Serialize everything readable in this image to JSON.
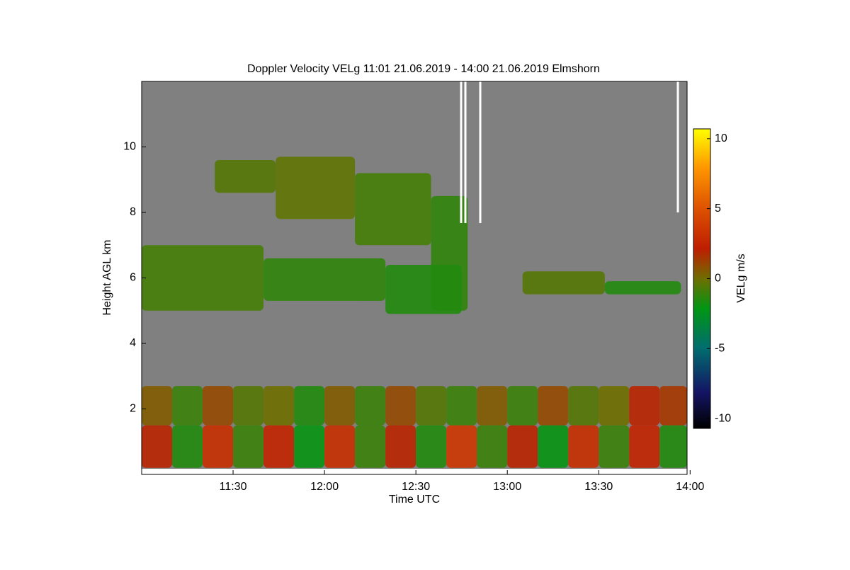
{
  "chart_data": {
    "type": "heatmap",
    "title": "Doppler Velocity VELg   11:01 21.06.2019 - 14:00 21.06.2019 Elmshorn",
    "x_label": "Time UTC",
    "y_label": "Height AGL km",
    "colorbar_label": "VELg m/s",
    "xlim": [
      660,
      839
    ],
    "ylim": [
      0,
      12
    ],
    "xticks": [
      {
        "value": 690,
        "label": "11:30"
      },
      {
        "value": 720,
        "label": "12:00"
      },
      {
        "value": 750,
        "label": "12:30"
      },
      {
        "value": 780,
        "label": "13:00"
      },
      {
        "value": 810,
        "label": "13:30"
      },
      {
        "value": 840,
        "label": "14:00"
      }
    ],
    "yticks": [
      2,
      4,
      6,
      8,
      10
    ],
    "clim": [
      -10.7,
      10.7
    ],
    "cticks": [
      10,
      5,
      0,
      -5,
      -10
    ],
    "cells": {
      "t0": [
        684,
        704,
        730,
        755,
        660,
        700,
        740,
        785,
        812,
        660,
        670,
        680,
        690,
        700,
        710,
        720,
        730,
        740,
        750,
        760,
        770,
        780,
        790,
        800,
        810,
        820,
        830,
        660,
        670,
        680,
        690,
        700,
        710,
        720,
        730,
        740,
        750,
        760,
        770,
        780,
        790,
        800,
        810,
        820,
        830
      ],
      "t1": [
        704,
        730,
        755,
        767,
        700,
        740,
        765,
        812,
        837,
        670,
        680,
        690,
        700,
        710,
        720,
        730,
        740,
        750,
        760,
        770,
        780,
        790,
        800,
        810,
        820,
        830,
        839,
        670,
        680,
        690,
        700,
        710,
        720,
        730,
        740,
        750,
        760,
        770,
        780,
        790,
        800,
        810,
        820,
        830,
        839
      ],
      "h0": [
        8.6,
        7.8,
        7.0,
        5.0,
        5.0,
        5.3,
        4.9,
        5.5,
        5.5,
        0.2,
        0.2,
        0.2,
        0.2,
        0.2,
        0.2,
        0.2,
        0.2,
        0.2,
        0.2,
        0.2,
        0.2,
        0.2,
        0.2,
        0.2,
        0.2,
        0.2,
        0.2,
        1.5,
        1.5,
        1.5,
        1.5,
        1.5,
        1.5,
        1.5,
        1.5,
        1.5,
        1.5,
        1.5,
        1.5,
        1.5,
        1.5,
        1.5,
        1.5,
        1.5,
        1.5
      ],
      "h1": [
        9.6,
        9.7,
        9.2,
        8.5,
        7.0,
        6.6,
        6.4,
        6.2,
        5.9,
        1.5,
        1.5,
        1.5,
        1.5,
        1.5,
        1.5,
        1.5,
        1.5,
        1.5,
        1.5,
        1.5,
        1.5,
        1.5,
        1.5,
        1.5,
        1.5,
        1.5,
        1.5,
        2.7,
        2.7,
        2.7,
        2.7,
        2.7,
        2.7,
        2.7,
        2.7,
        2.7,
        2.7,
        2.7,
        2.7,
        2.7,
        2.7,
        2.7,
        2.7,
        2.7,
        2.7
      ],
      "velocity": [
        -0.5,
        -0.3,
        -0.8,
        -1.2,
        -0.8,
        -1.2,
        -1.5,
        -0.5,
        -1.5,
        2,
        -1.5,
        3,
        -1,
        2.5,
        -2,
        3,
        -1,
        2,
        -1.5,
        3.5,
        -1,
        2,
        -2,
        3,
        -1,
        2.5,
        -1.5,
        0.5,
        -1,
        1,
        -0.5,
        0,
        -1.5,
        0.5,
        -1,
        1,
        -0.5,
        -1,
        0.5,
        -1,
        1,
        -0.5,
        0,
        2,
        1.5
      ]
    }
  }
}
